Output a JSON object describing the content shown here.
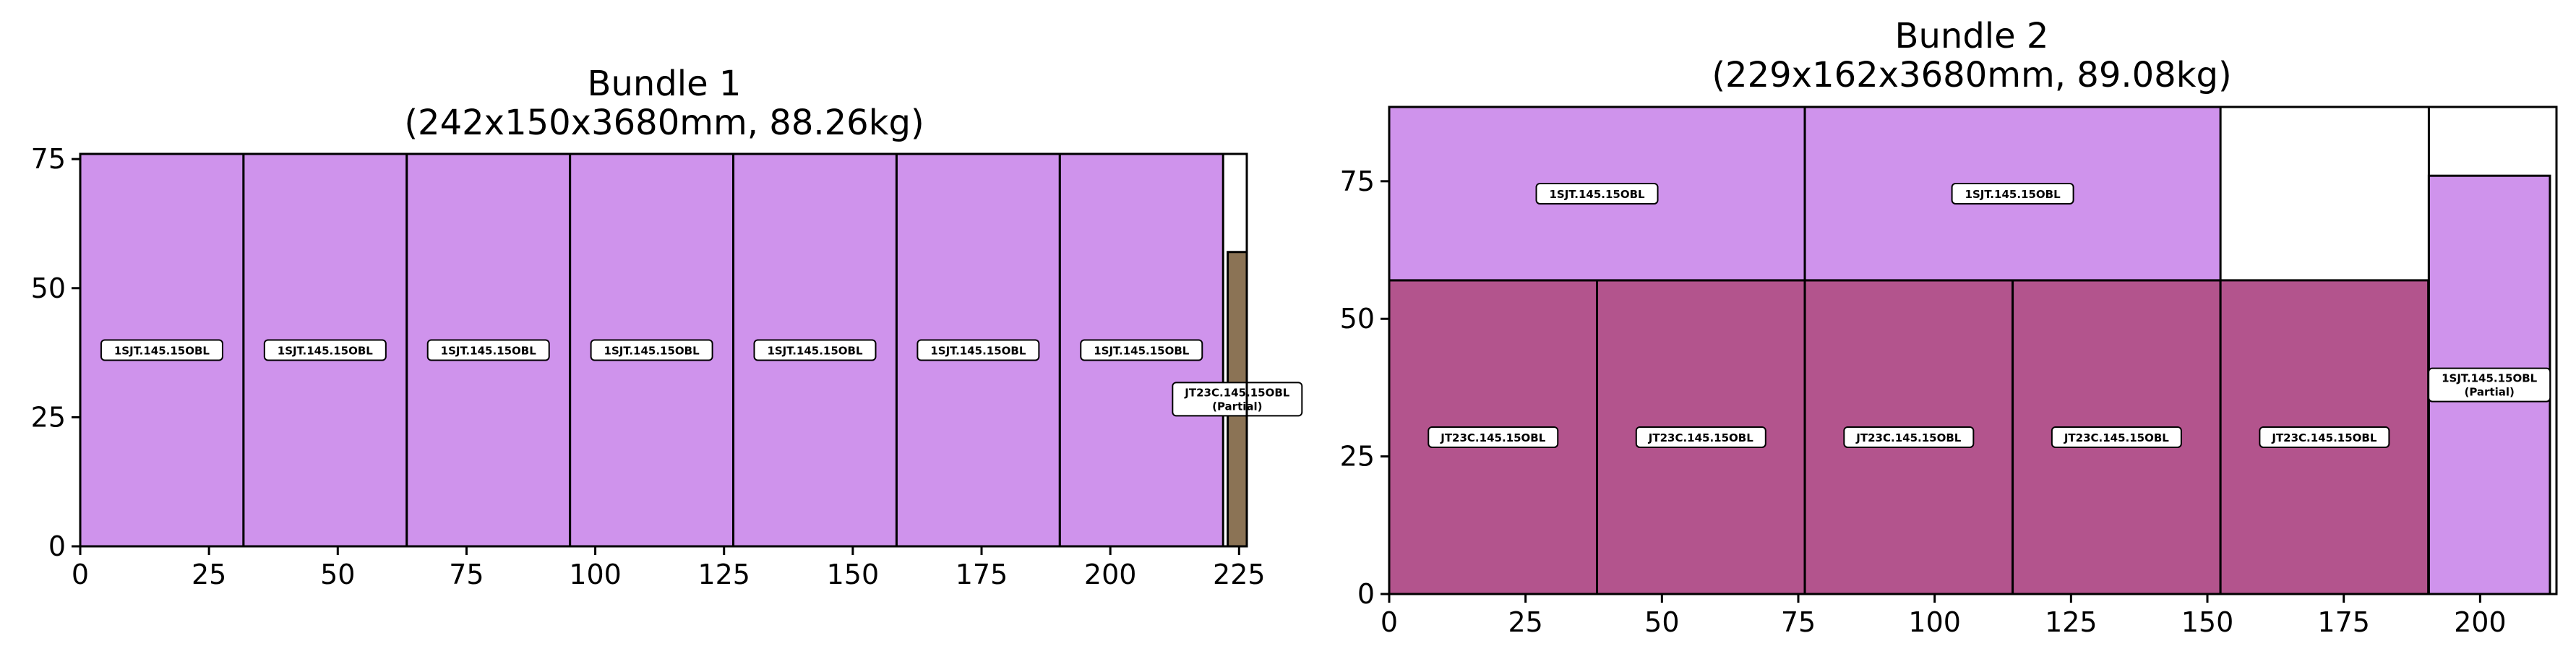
{
  "chart_data": [
    {
      "type": "rectangle-packing",
      "title_line1": "Bundle 1",
      "title_line2": "(242x150x3680mm, 88.26kg)",
      "xlim": [
        0,
        226.5
      ],
      "ylim": [
        0,
        76
      ],
      "xticks": [
        0,
        25,
        50,
        75,
        100,
        125,
        150,
        175,
        200,
        225
      ],
      "yticks": [
        0,
        25,
        50,
        75
      ],
      "outline": {
        "x": 0,
        "y": 0,
        "w": 226.5,
        "h": 76,
        "fill": "#ffffff"
      },
      "pieces": [
        {
          "label": "1SJT.145.15OBL",
          "x": 0,
          "y": 0,
          "w": 31.7,
          "h": 76,
          "color": "#cf93ec"
        },
        {
          "label": "1SJT.145.15OBL",
          "x": 31.7,
          "y": 0,
          "w": 31.7,
          "h": 76,
          "color": "#cf93ec"
        },
        {
          "label": "1SJT.145.15OBL",
          "x": 63.4,
          "y": 0,
          "w": 31.7,
          "h": 76,
          "color": "#cf93ec"
        },
        {
          "label": "1SJT.145.15OBL",
          "x": 95.1,
          "y": 0,
          "w": 31.7,
          "h": 76,
          "color": "#cf93ec"
        },
        {
          "label": "1SJT.145.15OBL",
          "x": 126.8,
          "y": 0,
          "w": 31.7,
          "h": 76,
          "color": "#cf93ec"
        },
        {
          "label": "1SJT.145.15OBL",
          "x": 158.5,
          "y": 0,
          "w": 31.7,
          "h": 76,
          "color": "#cf93ec"
        },
        {
          "label": "1SJT.145.15OBL",
          "x": 190.2,
          "y": 0,
          "w": 31.7,
          "h": 76,
          "color": "#cf93ec"
        },
        {
          "label": "JT23C.145.15OBL",
          "label2": "(Partial)",
          "x": 222.8,
          "y": 0,
          "w": 3.7,
          "h": 57,
          "color": "#8b7355"
        }
      ]
    },
    {
      "type": "rectangle-packing",
      "title_line1": "Bundle 2",
      "title_line2": "(229x162x3680mm, 89.08kg)",
      "xlim": [
        0,
        214
      ],
      "ylim": [
        0,
        88.5
      ],
      "xticks": [
        0,
        25,
        50,
        75,
        100,
        125,
        150,
        175,
        200
      ],
      "yticks": [
        0,
        25,
        50,
        75
      ],
      "outline": {
        "x": 0,
        "y": 0,
        "w": 190.6,
        "h": 88.5,
        "fill": "#ffffff"
      },
      "pieces": [
        {
          "label": "JT23C.145.15OBL",
          "x": 0,
          "y": 0,
          "w": 38.1,
          "h": 57,
          "color": "#b3548d"
        },
        {
          "label": "JT23C.145.15OBL",
          "x": 38.1,
          "y": 0,
          "w": 38.1,
          "h": 57,
          "color": "#b3548d"
        },
        {
          "label": "JT23C.145.15OBL",
          "x": 76.2,
          "y": 0,
          "w": 38.1,
          "h": 57,
          "color": "#b3548d"
        },
        {
          "label": "JT23C.145.15OBL",
          "x": 114.3,
          "y": 0,
          "w": 38.1,
          "h": 57,
          "color": "#b3548d"
        },
        {
          "label": "JT23C.145.15OBL",
          "x": 152.4,
          "y": 0,
          "w": 38.1,
          "h": 57,
          "color": "#b3548d"
        },
        {
          "label": "1SJT.145.15OBL",
          "x": 0,
          "y": 57,
          "w": 76.2,
          "h": 31.5,
          "color": "#cf93ec"
        },
        {
          "label": "1SJT.145.15OBL",
          "x": 76.2,
          "y": 57,
          "w": 76.2,
          "h": 31.5,
          "color": "#cf93ec"
        },
        {
          "label": "1SJT.145.15OBL",
          "label2": "(Partial)",
          "x": 190.6,
          "y": 0,
          "w": 22.2,
          "h": 76,
          "color": "#cf93ec"
        }
      ]
    }
  ]
}
